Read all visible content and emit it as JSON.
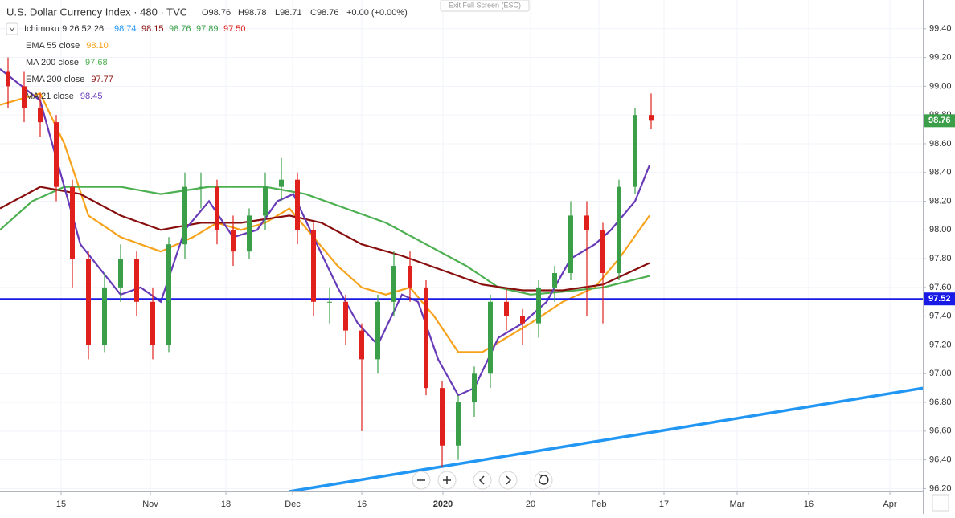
{
  "header": {
    "title": "U.S. Dollar Currency Index · 480 · TVC",
    "ohlc": [
      "O98.76",
      "H98.78",
      "L98.71",
      "C98.76",
      "+0.00 (+0.00%)"
    ],
    "exit_button": "Exit Full Screen (ESC)"
  },
  "chart_data": {
    "type": "candlestick",
    "xlim": [
      -1,
      113.8
    ],
    "ylim": [
      96.18,
      99.6
    ],
    "xticks": [
      {
        "value": 6.6,
        "label": "15"
      },
      {
        "value": 17.7,
        "label": "Nov"
      },
      {
        "value": 27.1,
        "label": "18"
      },
      {
        "value": 35.4,
        "label": "Dec"
      },
      {
        "value": 44,
        "label": "16"
      },
      {
        "value": 54.1,
        "label": "2020"
      },
      {
        "value": 65,
        "label": "20"
      },
      {
        "value": 73.5,
        "label": "Feb"
      },
      {
        "value": 81.6,
        "label": "17"
      },
      {
        "value": 90.7,
        "label": "Mar"
      },
      {
        "value": 99.6,
        "label": "16"
      },
      {
        "value": 109.7,
        "label": "Apr"
      }
    ],
    "yticks": [
      {
        "value": 99.4,
        "label": "99.40"
      },
      {
        "value": 99.2,
        "label": "99.20"
      },
      {
        "value": 99.0,
        "label": "99.00"
      },
      {
        "value": 98.8,
        "label": "98.80"
      },
      {
        "value": 98.6,
        "label": "98.60"
      },
      {
        "value": 98.4,
        "label": "98.40"
      },
      {
        "value": 98.2,
        "label": "98.20"
      },
      {
        "value": 98.0,
        "label": "98.00"
      },
      {
        "value": 97.8,
        "label": "97.80"
      },
      {
        "value": 97.6,
        "label": "97.60"
      },
      {
        "value": 97.4,
        "label": "97.40"
      },
      {
        "value": 97.2,
        "label": "97.20"
      },
      {
        "value": 97.0,
        "label": "97.00"
      },
      {
        "value": 96.8,
        "label": "96.80"
      },
      {
        "value": 96.6,
        "label": "96.60"
      },
      {
        "value": 96.4,
        "label": "96.40"
      },
      {
        "value": 96.2,
        "label": "96.20"
      }
    ],
    "up_color": "#3a9f48",
    "down_color": "#e0201c",
    "candles": {
      "x": [
        0,
        2,
        4,
        6,
        8,
        10,
        12,
        14,
        16,
        18,
        20,
        22,
        24,
        26,
        28,
        30,
        32,
        34,
        36,
        38,
        40,
        42,
        44,
        46,
        48,
        50,
        52,
        54,
        56,
        58,
        60,
        62,
        64,
        66,
        68,
        70,
        72,
        74,
        76,
        78,
        80
      ],
      "open": [
        99.1,
        99.0,
        98.85,
        98.75,
        98.3,
        97.8,
        97.2,
        97.6,
        97.8,
        97.5,
        97.2,
        97.9,
        98.3,
        98.3,
        98.0,
        97.85,
        98.1,
        98.3,
        98.35,
        98.0,
        97.5,
        97.5,
        97.3,
        97.1,
        97.5,
        97.75,
        97.6,
        96.9,
        96.5,
        96.8,
        97.0,
        97.5,
        97.4,
        97.35,
        97.6,
        97.7,
        98.1,
        98.0,
        97.7,
        98.3,
        98.8
      ],
      "high": [
        99.2,
        99.1,
        98.95,
        98.8,
        98.35,
        97.85,
        97.7,
        97.9,
        97.85,
        97.6,
        97.95,
        98.4,
        98.4,
        98.35,
        98.1,
        98.15,
        98.4,
        98.5,
        98.4,
        98.05,
        97.6,
        97.55,
        97.35,
        97.55,
        97.85,
        97.85,
        97.65,
        96.95,
        96.85,
        97.05,
        97.55,
        97.6,
        97.45,
        97.65,
        97.75,
        98.2,
        98.2,
        98.05,
        98.35,
        98.85,
        98.95
      ],
      "low": [
        98.85,
        98.75,
        98.65,
        98.2,
        97.6,
        97.1,
        97.15,
        97.5,
        97.4,
        97.1,
        97.15,
        97.8,
        98.15,
        97.9,
        97.75,
        97.8,
        98.0,
        98.2,
        97.9,
        97.4,
        97.35,
        97.2,
        96.6,
        97.0,
        97.4,
        97.5,
        96.85,
        96.35,
        96.4,
        96.7,
        96.9,
        97.3,
        97.2,
        97.25,
        97.5,
        97.65,
        97.4,
        97.35,
        97.65,
        98.25,
        98.7
      ],
      "close": [
        99.0,
        98.85,
        98.75,
        98.3,
        97.8,
        97.2,
        97.6,
        97.8,
        97.5,
        97.2,
        97.9,
        98.3,
        98.3,
        98.0,
        97.85,
        98.1,
        98.3,
        98.35,
        98.0,
        97.5,
        97.5,
        97.3,
        97.1,
        97.5,
        97.75,
        97.6,
        96.9,
        96.5,
        96.8,
        97.0,
        97.5,
        97.4,
        97.35,
        97.6,
        97.7,
        98.1,
        98.0,
        97.7,
        98.3,
        98.8,
        98.76
      ]
    },
    "ichimoku": {
      "name": "Ichimoku 9 26 52 26",
      "values": [
        "98.74",
        "98.15",
        "98.76",
        "97.89",
        "97.50"
      ],
      "colors": [
        "#2196f3",
        "#880e0e",
        "#3a9f48",
        "#3a9f48",
        "#e0201c"
      ]
    },
    "indicators": [
      {
        "name": "EMA 55 close",
        "value": "98.10",
        "color": "#f7a21b",
        "x": [
          -1,
          4,
          7,
          10,
          14,
          19,
          23,
          26,
          29,
          32,
          35,
          38,
          41,
          44,
          47,
          50,
          53,
          56,
          59,
          62,
          65,
          69,
          73,
          76,
          79.8
        ],
        "values": [
          98.87,
          98.95,
          98.6,
          98.1,
          97.95,
          97.85,
          97.95,
          98.05,
          98.0,
          98.05,
          98.15,
          97.95,
          97.75,
          97.6,
          97.55,
          97.6,
          97.4,
          97.15,
          97.15,
          97.25,
          97.35,
          97.5,
          97.6,
          97.8,
          98.1
        ]
      },
      {
        "name": "MA 200 close",
        "value": "97.68",
        "color": "#4caf50",
        "x": [
          -1,
          3,
          7,
          14,
          19,
          25,
          32,
          37,
          42,
          47,
          52,
          57,
          61,
          65,
          69,
          74,
          79.8
        ],
        "values": [
          98.0,
          98.2,
          98.3,
          98.3,
          98.25,
          98.3,
          98.3,
          98.25,
          98.15,
          98.05,
          97.9,
          97.75,
          97.6,
          97.55,
          97.57,
          97.6,
          97.68
        ]
      },
      {
        "name": "EMA 200 close",
        "value": "97.77",
        "color": "#880e0e",
        "x": [
          -1,
          4,
          9,
          14,
          19,
          24,
          29,
          35,
          39,
          44,
          49,
          54,
          59,
          64,
          69,
          74,
          79.8
        ],
        "values": [
          98.15,
          98.3,
          98.25,
          98.1,
          98.0,
          98.05,
          98.05,
          98.1,
          98.05,
          97.9,
          97.82,
          97.72,
          97.62,
          97.58,
          97.58,
          97.62,
          97.77
        ]
      },
      {
        "name": "MA 21 close",
        "value": "98.45",
        "color": "#673ab7",
        "x": [
          -1,
          4,
          9,
          14,
          16.5,
          19,
          22,
          25,
          28,
          31,
          33.5,
          35.5,
          38,
          41,
          43.5,
          46,
          49,
          51,
          53.5,
          56,
          58,
          61,
          64,
          67,
          70,
          73,
          75,
          78,
          79.8
        ],
        "values": [
          99.12,
          98.9,
          97.9,
          97.55,
          97.6,
          97.5,
          98.0,
          98.2,
          97.95,
          98.0,
          98.2,
          98.25,
          97.95,
          97.6,
          97.35,
          97.2,
          97.55,
          97.5,
          97.1,
          96.85,
          96.9,
          97.25,
          97.35,
          97.5,
          97.8,
          97.9,
          98.0,
          98.2,
          98.45
        ]
      }
    ],
    "hline": {
      "value": 97.52,
      "color": "#1a1ae6"
    },
    "trendline": {
      "x": [
        35,
        113.8
      ],
      "values": [
        96.18,
        96.9
      ],
      "color": "#2196f3"
    }
  }
}
